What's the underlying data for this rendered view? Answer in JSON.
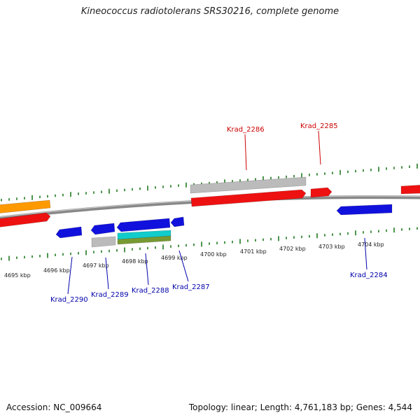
{
  "title": "Kineococcus radiotolerans SRS30216, complete genome",
  "accession_label": "Accession: NC_009664",
  "topology_label": "Topology: linear; Length: 4,761,183 bp; Genes: 4,544",
  "colors": {
    "backbone": "#888888",
    "tick": "#1f7a1f",
    "red": "#ee1111",
    "blue": "#1111dd",
    "gray": "#bbbbbb",
    "orange": "#ff9900",
    "cyan": "#11cccc",
    "olive": "#779933",
    "label_red": "#cc0000",
    "label_blue": "#0000aa"
  },
  "kbp_labels": [
    "4695 kbp",
    "4696 kbp",
    "4697 kbp",
    "4698 kbp",
    "4699 kbp",
    "4700 kbp",
    "4701 kbp",
    "4702 kbp",
    "4703 kbp",
    "4704 kbp"
  ],
  "gene_labels": [
    {
      "text": "Krad_2286",
      "color": "red"
    },
    {
      "text": "Krad_2285",
      "color": "red"
    },
    {
      "text": "Krad_2290",
      "color": "blue"
    },
    {
      "text": "Krad_2289",
      "color": "blue"
    },
    {
      "text": "Krad_2288",
      "color": "blue"
    },
    {
      "text": "Krad_2287",
      "color": "blue"
    },
    {
      "text": "Krad_2284",
      "color": "blue"
    }
  ]
}
